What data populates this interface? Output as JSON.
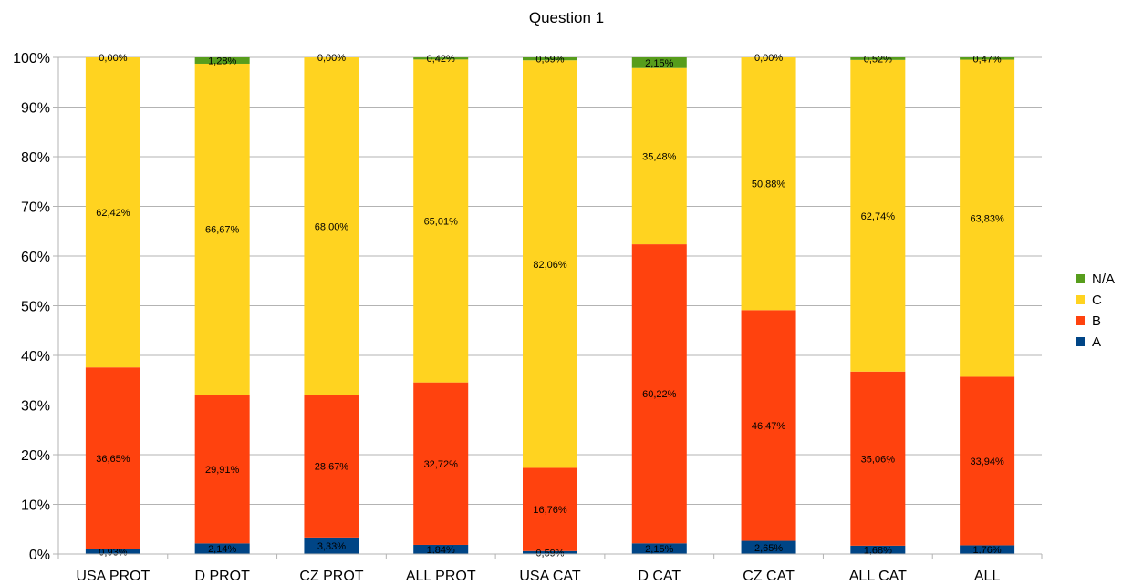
{
  "chart_data": {
    "type": "bar",
    "stacked": true,
    "title": "Question 1",
    "categories": [
      "USA PROT",
      "D PROT",
      "CZ PROT",
      "ALL PROT",
      "USA CAT",
      "D CAT",
      "CZ CAT",
      "ALL CAT",
      "ALL"
    ],
    "series": [
      {
        "name": "A",
        "color": "#004586",
        "values": [
          0.93,
          2.14,
          3.33,
          1.84,
          0.59,
          2.15,
          2.65,
          1.68,
          1.76
        ],
        "labels": [
          "0,93%",
          "2,14%",
          "3,33%",
          "1,84%",
          "0,59%",
          "2,15%",
          "2,65%",
          "1,68%",
          "1,76%"
        ]
      },
      {
        "name": "B",
        "color": "#ff420e",
        "values": [
          36.65,
          29.91,
          28.67,
          32.72,
          16.76,
          60.22,
          46.47,
          35.06,
          33.94
        ],
        "labels": [
          "36,65%",
          "29,91%",
          "28,67%",
          "32,72%",
          "16,76%",
          "60,22%",
          "46,47%",
          "35,06%",
          "33,94%"
        ]
      },
      {
        "name": "C",
        "color": "#ffd320",
        "values": [
          62.42,
          66.67,
          68.0,
          65.01,
          82.06,
          35.48,
          50.88,
          62.74,
          63.83
        ],
        "labels": [
          "62,42%",
          "66,67%",
          "68,00%",
          "65,01%",
          "82,06%",
          "35,48%",
          "50,88%",
          "62,74%",
          "63,83%"
        ]
      },
      {
        "name": "N/A",
        "color": "#579d1c",
        "values": [
          0.0,
          1.28,
          0.0,
          0.42,
          0.59,
          2.15,
          0.0,
          0.52,
          0.47
        ],
        "labels": [
          "0,00%",
          "1,28%",
          "0,00%",
          "0,42%",
          "0,59%",
          "2,15%",
          "0,00%",
          "0,52%",
          "0,47%"
        ]
      }
    ],
    "ylim": [
      0,
      100
    ],
    "yticks": [
      "0%",
      "10%",
      "20%",
      "30%",
      "40%",
      "50%",
      "60%",
      "70%",
      "80%",
      "90%",
      "100%"
    ],
    "grid": true,
    "legend": "right",
    "legend_order": [
      "N/A",
      "C",
      "B",
      "A"
    ]
  }
}
